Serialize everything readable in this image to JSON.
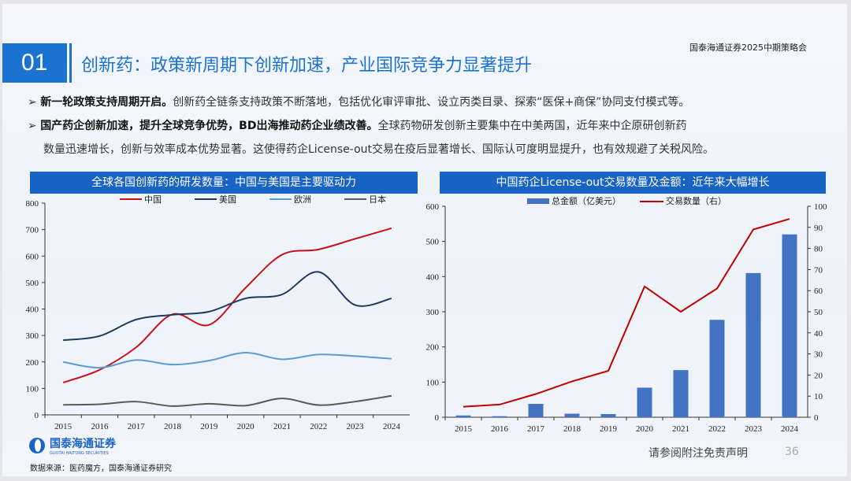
{
  "header": {
    "org": "国泰海通证券2025中期策略会",
    "section_number": "01",
    "title": "创新药：政策新周期下创新加速，产业国际竞争力显著提升"
  },
  "bullets": [
    {
      "bold": "新一轮政策支持周期开启。",
      "text": "创新药全链条支持政策不断落地，包括优化审评审批、设立丙类目录、探索“医保+商保”协同支付模式等。"
    },
    {
      "bold": "国产药企创新加速，提升全球竞争优势，BD出海推动药企业绩改善。",
      "text": "全球药物研发创新主要集中在中美两国，近年来中企原研创新药",
      "text2": "数量迅速增长，创新与效率成本优势显著。这使得药企License-out交易在疫后显著增长、国际认可度明显提升，也有效规避了关税风险。"
    }
  ],
  "chart_data": [
    {
      "type": "line",
      "title": "全球各国创新药的研发数量：中国与美国是主要驱动力",
      "categories": [
        "2015",
        "2016",
        "2017",
        "2018",
        "2019",
        "2020",
        "2021",
        "2022",
        "2023",
        "2024"
      ],
      "ylim": [
        0,
        800
      ],
      "yticks": [
        0,
        100,
        200,
        300,
        400,
        500,
        600,
        700,
        800
      ],
      "legend": "top",
      "series": [
        {
          "name": "中国",
          "color": "#c8101e",
          "values": [
            122,
            170,
            255,
            380,
            340,
            480,
            605,
            625,
            665,
            705
          ]
        },
        {
          "name": "美国",
          "color": "#203864",
          "values": [
            282,
            298,
            360,
            378,
            390,
            440,
            455,
            540,
            415,
            440
          ]
        },
        {
          "name": "欧洲",
          "color": "#5b9bd5",
          "values": [
            200,
            178,
            207,
            190,
            205,
            235,
            210,
            228,
            222,
            212
          ]
        },
        {
          "name": "日本",
          "color": "#595959",
          "values": [
            38,
            40,
            50,
            33,
            42,
            35,
            62,
            37,
            50,
            72
          ]
        }
      ]
    },
    {
      "type": "bar+line",
      "title": "中国药企License-out交易数量及金额：近年来大幅增长",
      "categories": [
        "2015",
        "2016",
        "2017",
        "2018",
        "2019",
        "2020",
        "2021",
        "2022",
        "2023",
        "2024"
      ],
      "ylim": [
        0,
        600
      ],
      "yticks": [
        0,
        100,
        200,
        300,
        400,
        500,
        600
      ],
      "y2lim": [
        0,
        100
      ],
      "y2ticks": [
        0,
        10,
        20,
        30,
        40,
        50,
        60,
        70,
        80,
        90,
        100
      ],
      "legend": "top",
      "series": [
        {
          "name": "总金额（亿美元）",
          "type": "bar",
          "axis": "left",
          "color": "#4472c4",
          "values": [
            5,
            3,
            38,
            10,
            9,
            84,
            134,
            277,
            410,
            520
          ]
        },
        {
          "name": "交易数量（右）",
          "type": "line",
          "axis": "right",
          "color": "#c00000",
          "values": [
            5,
            6,
            11,
            17,
            22,
            62,
            50,
            61,
            89,
            94
          ]
        }
      ]
    }
  ],
  "footer": {
    "logo_text": "国泰海通证券",
    "logo_sub": "GUOTAI HAITONG SECURITIES",
    "source": "数据来源：医药魔方，国泰海通证券研究",
    "disclaimer": "请参阅附注免责声明",
    "page": "36"
  }
}
